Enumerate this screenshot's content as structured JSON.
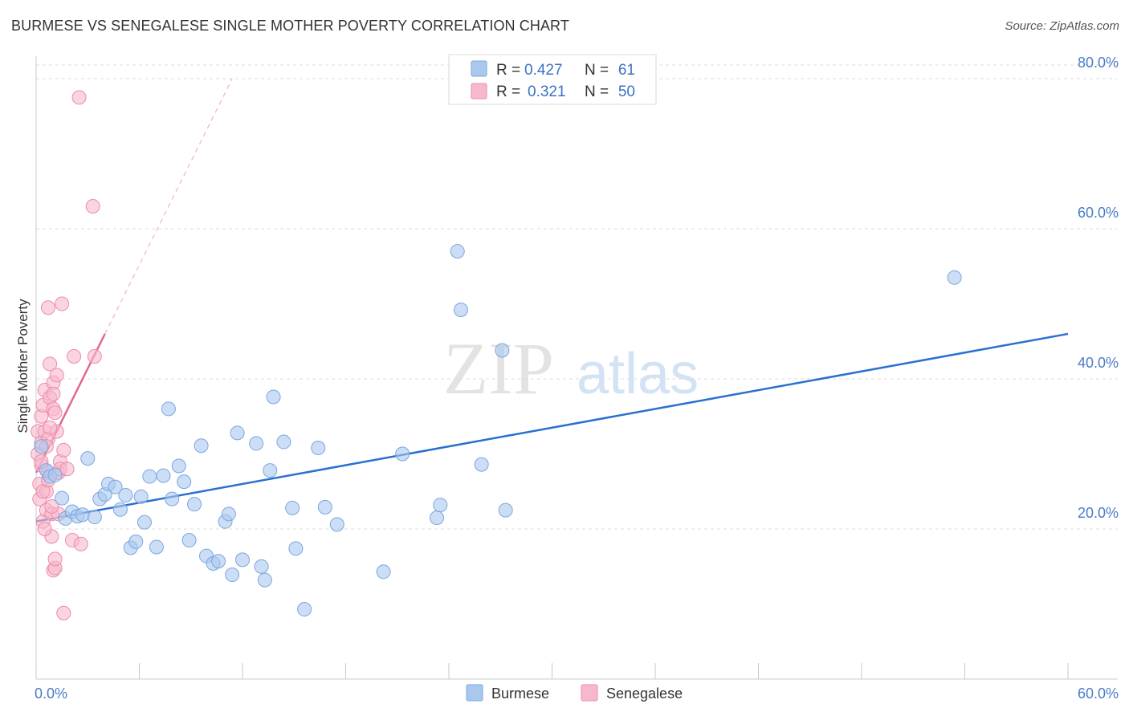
{
  "header": {
    "title": "BURMESE VS SENEGALESE SINGLE MOTHER POVERTY CORRELATION CHART",
    "source": "Source: ZipAtlas.com"
  },
  "watermark": {
    "zip": "ZIP",
    "atlas": "atlas"
  },
  "legend": {
    "rows": [
      {
        "r_label": "R =",
        "r_value": "0.427",
        "n_label": "N =",
        "n_value": "61"
      },
      {
        "r_label": "R =",
        "r_value": "0.321",
        "n_label": "N =",
        "n_value": "50"
      }
    ]
  },
  "colors": {
    "burmese_fill": "#aac8ee",
    "burmese_stroke": "#7aa6e0",
    "burmese_line": "#2a6fcf",
    "senegalese_fill": "#f6b9cb",
    "senegalese_stroke": "#ee8aab",
    "senegalese_line": "#e0679a",
    "grid": "#dddddd",
    "axis_label": "#4a7cc7"
  },
  "chart_data": {
    "type": "scatter",
    "title": "BURMESE VS SENEGALESE SINGLE MOTHER POVERTY CORRELATION CHART",
    "xlabel": "",
    "ylabel": "Single Mother Poverty",
    "xlim": [
      0,
      60
    ],
    "ylim": [
      0,
      83
    ],
    "x_tick_labels": [
      "0.0%",
      "60.0%"
    ],
    "y_ticks": [
      20,
      40,
      60,
      80
    ],
    "y_tick_labels": [
      "20.0%",
      "40.0%",
      "60.0%",
      "80.0%"
    ],
    "grid": true,
    "legend_position": "top-center",
    "series": [
      {
        "name": "Burmese",
        "R": 0.427,
        "N": 61,
        "trend": {
          "x": [
            0,
            60
          ],
          "y": [
            21.0,
            46.0
          ],
          "style": "solid"
        },
        "points": [
          [
            0.3,
            31.0
          ],
          [
            0.6,
            27.8
          ],
          [
            0.8,
            27.0
          ],
          [
            1.1,
            27.2
          ],
          [
            1.5,
            24.1
          ],
          [
            1.7,
            21.4
          ],
          [
            2.1,
            22.3
          ],
          [
            2.4,
            21.7
          ],
          [
            2.7,
            21.9
          ],
          [
            3.0,
            29.4
          ],
          [
            3.4,
            21.6
          ],
          [
            3.7,
            24.0
          ],
          [
            4.0,
            24.6
          ],
          [
            4.2,
            26.0
          ],
          [
            4.6,
            25.6
          ],
          [
            4.9,
            22.6
          ],
          [
            5.2,
            24.5
          ],
          [
            5.5,
            17.5
          ],
          [
            5.8,
            18.3
          ],
          [
            6.1,
            24.3
          ],
          [
            6.3,
            20.9
          ],
          [
            6.6,
            27.0
          ],
          [
            7.0,
            17.6
          ],
          [
            7.4,
            27.1
          ],
          [
            7.7,
            36.0
          ],
          [
            7.9,
            24.0
          ],
          [
            8.3,
            28.4
          ],
          [
            8.6,
            26.3
          ],
          [
            8.9,
            18.5
          ],
          [
            9.2,
            23.3
          ],
          [
            9.6,
            31.1
          ],
          [
            9.9,
            16.4
          ],
          [
            10.3,
            15.4
          ],
          [
            10.6,
            15.7
          ],
          [
            11.0,
            21.0
          ],
          [
            11.2,
            22.0
          ],
          [
            11.4,
            13.9
          ],
          [
            11.7,
            32.8
          ],
          [
            12.0,
            15.9
          ],
          [
            12.8,
            31.4
          ],
          [
            13.1,
            15.0
          ],
          [
            13.3,
            13.2
          ],
          [
            13.6,
            27.8
          ],
          [
            13.8,
            37.6
          ],
          [
            14.4,
            31.6
          ],
          [
            14.9,
            22.8
          ],
          [
            15.1,
            17.4
          ],
          [
            15.6,
            9.3
          ],
          [
            16.4,
            30.8
          ],
          [
            16.8,
            22.9
          ],
          [
            17.5,
            20.6
          ],
          [
            20.2,
            14.3
          ],
          [
            21.3,
            30.0
          ],
          [
            23.3,
            21.5
          ],
          [
            23.5,
            23.2
          ],
          [
            24.5,
            57.0
          ],
          [
            24.7,
            49.2
          ],
          [
            25.9,
            28.6
          ],
          [
            27.1,
            43.8
          ],
          [
            27.3,
            22.5
          ],
          [
            53.4,
            53.5
          ]
        ]
      },
      {
        "name": "Senegalese",
        "R": 0.321,
        "N": 50,
        "trend": {
          "x": [
            0,
            4.0
          ],
          "y": [
            27.5,
            46.0
          ],
          "style": "solid",
          "extended_to": [
            11.4,
            80.0
          ],
          "extended_style": "dashed"
        },
        "points": [
          [
            0.1,
            33.0
          ],
          [
            0.1,
            30.0
          ],
          [
            0.2,
            24.0
          ],
          [
            0.2,
            26.0
          ],
          [
            0.3,
            28.5
          ],
          [
            0.3,
            31.5
          ],
          [
            0.3,
            35.0
          ],
          [
            0.4,
            36.5
          ],
          [
            0.4,
            21.0
          ],
          [
            0.5,
            38.5
          ],
          [
            0.5,
            33.0
          ],
          [
            0.6,
            25.0
          ],
          [
            0.6,
            22.5
          ],
          [
            0.7,
            27.5
          ],
          [
            0.7,
            32.0
          ],
          [
            0.7,
            49.5
          ],
          [
            0.8,
            42.0
          ],
          [
            0.8,
            37.5
          ],
          [
            0.9,
            19.0
          ],
          [
            0.9,
            22.0
          ],
          [
            1.0,
            36.0
          ],
          [
            1.0,
            14.5
          ],
          [
            1.0,
            39.5
          ],
          [
            1.1,
            14.8
          ],
          [
            1.1,
            16.0
          ],
          [
            1.2,
            40.5
          ],
          [
            1.2,
            33.0
          ],
          [
            1.3,
            22.0
          ],
          [
            1.3,
            27.5
          ],
          [
            1.4,
            29.0
          ],
          [
            1.4,
            28.0
          ],
          [
            1.5,
            50.0
          ],
          [
            1.6,
            30.5
          ],
          [
            1.6,
            8.8
          ],
          [
            1.8,
            28.0
          ],
          [
            2.1,
            18.5
          ],
          [
            2.2,
            43.0
          ],
          [
            2.6,
            18.0
          ],
          [
            3.4,
            43.0
          ],
          [
            2.5,
            77.5
          ],
          [
            3.3,
            63.0
          ],
          [
            0.4,
            25.0
          ],
          [
            0.6,
            31.0
          ],
          [
            0.9,
            23.0
          ],
          [
            0.8,
            33.5
          ],
          [
            1.0,
            38.0
          ],
          [
            0.5,
            20.0
          ],
          [
            0.3,
            29.0
          ],
          [
            0.7,
            26.5
          ],
          [
            1.1,
            35.5
          ]
        ]
      }
    ]
  },
  "bottom_legend": {
    "items": [
      "Burmese",
      "Senegalese"
    ]
  }
}
